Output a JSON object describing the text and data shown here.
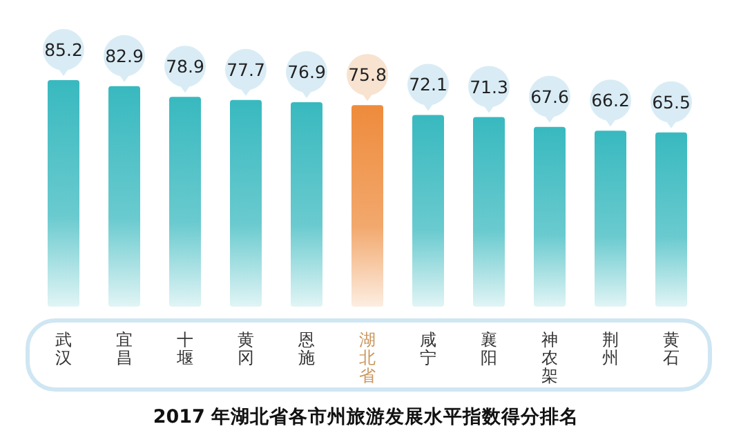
{
  "chart_data": {
    "type": "bar",
    "title": "2017 年湖北省各市州旅游发展水平指数得分排名",
    "categories": [
      "武汉",
      "宜昌",
      "十堰",
      "黄冈",
      "恩施",
      "湖北省",
      "咸宁",
      "襄阳",
      "神农架",
      "荆州",
      "黄石"
    ],
    "values": [
      85.2,
      82.9,
      78.9,
      77.7,
      76.9,
      75.8,
      72.1,
      71.3,
      67.6,
      66.2,
      65.5
    ],
    "colors": [
      "#38b9bf",
      "#38b9bf",
      "#38b9bf",
      "#38b9bf",
      "#38b9bf",
      "#ee8b3c",
      "#38b9bf",
      "#38b9bf",
      "#38b9bf",
      "#38b9bf",
      "#38b9bf"
    ],
    "data_labels": true
  }
}
